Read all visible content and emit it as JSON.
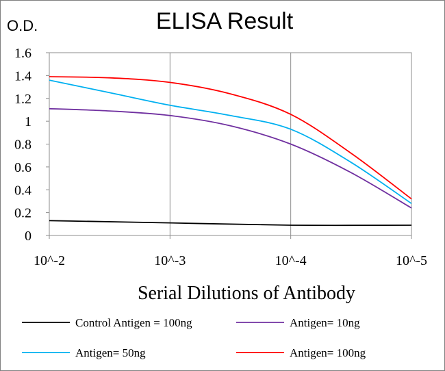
{
  "chart_data": {
    "type": "line",
    "title": "ELISA Result",
    "ylabel": "O.D.",
    "xlabel": "Serial Dilutions  of Antibody",
    "x_tick_labels": [
      "10^-2",
      "10^-3",
      "10^-4",
      "10^-5"
    ],
    "x_log_exponents": [
      -2,
      -3,
      -4,
      -5
    ],
    "ylim": [
      0,
      1.6
    ],
    "y_ticks": [
      "0",
      "0.2",
      "0.4",
      "0.6",
      "0.8",
      "1",
      "1.2",
      "1.4",
      "1.6"
    ],
    "grid": "vertical",
    "legend_position": "bottom",
    "series": [
      {
        "name": "Control Antigen = 100ng",
        "color": "#000000",
        "x": [
          -2,
          -3,
          -4,
          -5
        ],
        "values": [
          0.13,
          0.11,
          0.09,
          0.09
        ]
      },
      {
        "name": "Antigen= 10ng",
        "color": "#7030A0",
        "x": [
          -2,
          -2.5,
          -3,
          -3.5,
          -4,
          -4.5,
          -5
        ],
        "values": [
          1.11,
          1.09,
          1.05,
          0.96,
          0.8,
          0.55,
          0.24
        ]
      },
      {
        "name": "Antigen= 50ng",
        "color": "#00B0F0",
        "x": [
          -2,
          -2.5,
          -3,
          -3.5,
          -4,
          -4.5,
          -5
        ],
        "values": [
          1.36,
          1.25,
          1.14,
          1.05,
          0.93,
          0.64,
          0.28
        ]
      },
      {
        "name": "Antigen= 100ng",
        "color": "#FF0000",
        "x": [
          -2,
          -2.5,
          -3,
          -3.5,
          -4,
          -4.5,
          -5
        ],
        "values": [
          1.39,
          1.38,
          1.34,
          1.24,
          1.06,
          0.72,
          0.32
        ]
      }
    ]
  }
}
